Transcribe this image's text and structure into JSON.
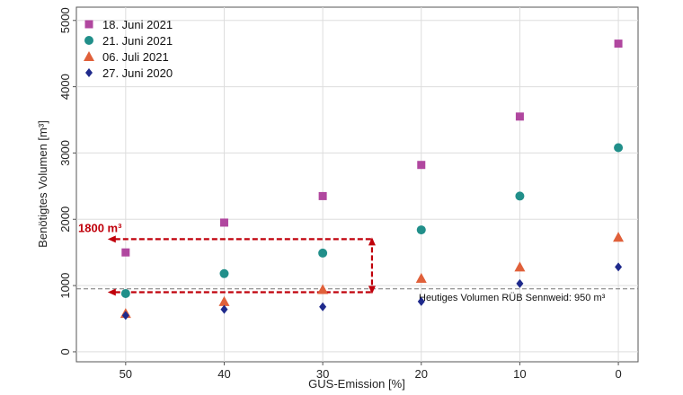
{
  "chart_data": {
    "type": "scatter",
    "xlabel": "GUS-Emission [%]",
    "ylabel": "Benötigtes Volumen [m³]",
    "x": [
      50,
      40,
      30,
      20,
      10,
      0
    ],
    "xlim": [
      55,
      -2
    ],
    "ylim": [
      -150,
      5200
    ],
    "xticks": [
      50,
      40,
      30,
      20,
      10,
      0
    ],
    "yticks": [
      0,
      1000,
      2000,
      3000,
      4000,
      5000
    ],
    "grid": true,
    "legend_position": "top-left",
    "series": [
      {
        "name": "18. Juni 2021",
        "marker": "square",
        "color": "#b0479f",
        "values": [
          1500,
          1950,
          2350,
          2820,
          3550,
          4650
        ]
      },
      {
        "name": "21. Juni 2021",
        "marker": "circle",
        "color": "#218f8a",
        "values": [
          880,
          1180,
          1490,
          1840,
          2350,
          3080
        ]
      },
      {
        "name": "06. Juli 2021",
        "marker": "triangle",
        "color": "#e0603a",
        "values": [
          580,
          760,
          940,
          1110,
          1280,
          1730
        ]
      },
      {
        "name": "27. Juni 2020",
        "marker": "diamond",
        "color": "#1f2a8c",
        "values": [
          550,
          640,
          680,
          760,
          1030,
          1280
        ]
      }
    ],
    "reference_line": {
      "value": 950,
      "label": "Heutiges Volumen RÜB Sennweid: 950 m³"
    },
    "annotation": {
      "label": "1800 m³",
      "color": "#c0000b",
      "y_low": 900,
      "y_high": 1700,
      "x_from": 50,
      "x_to": 25
    }
  }
}
